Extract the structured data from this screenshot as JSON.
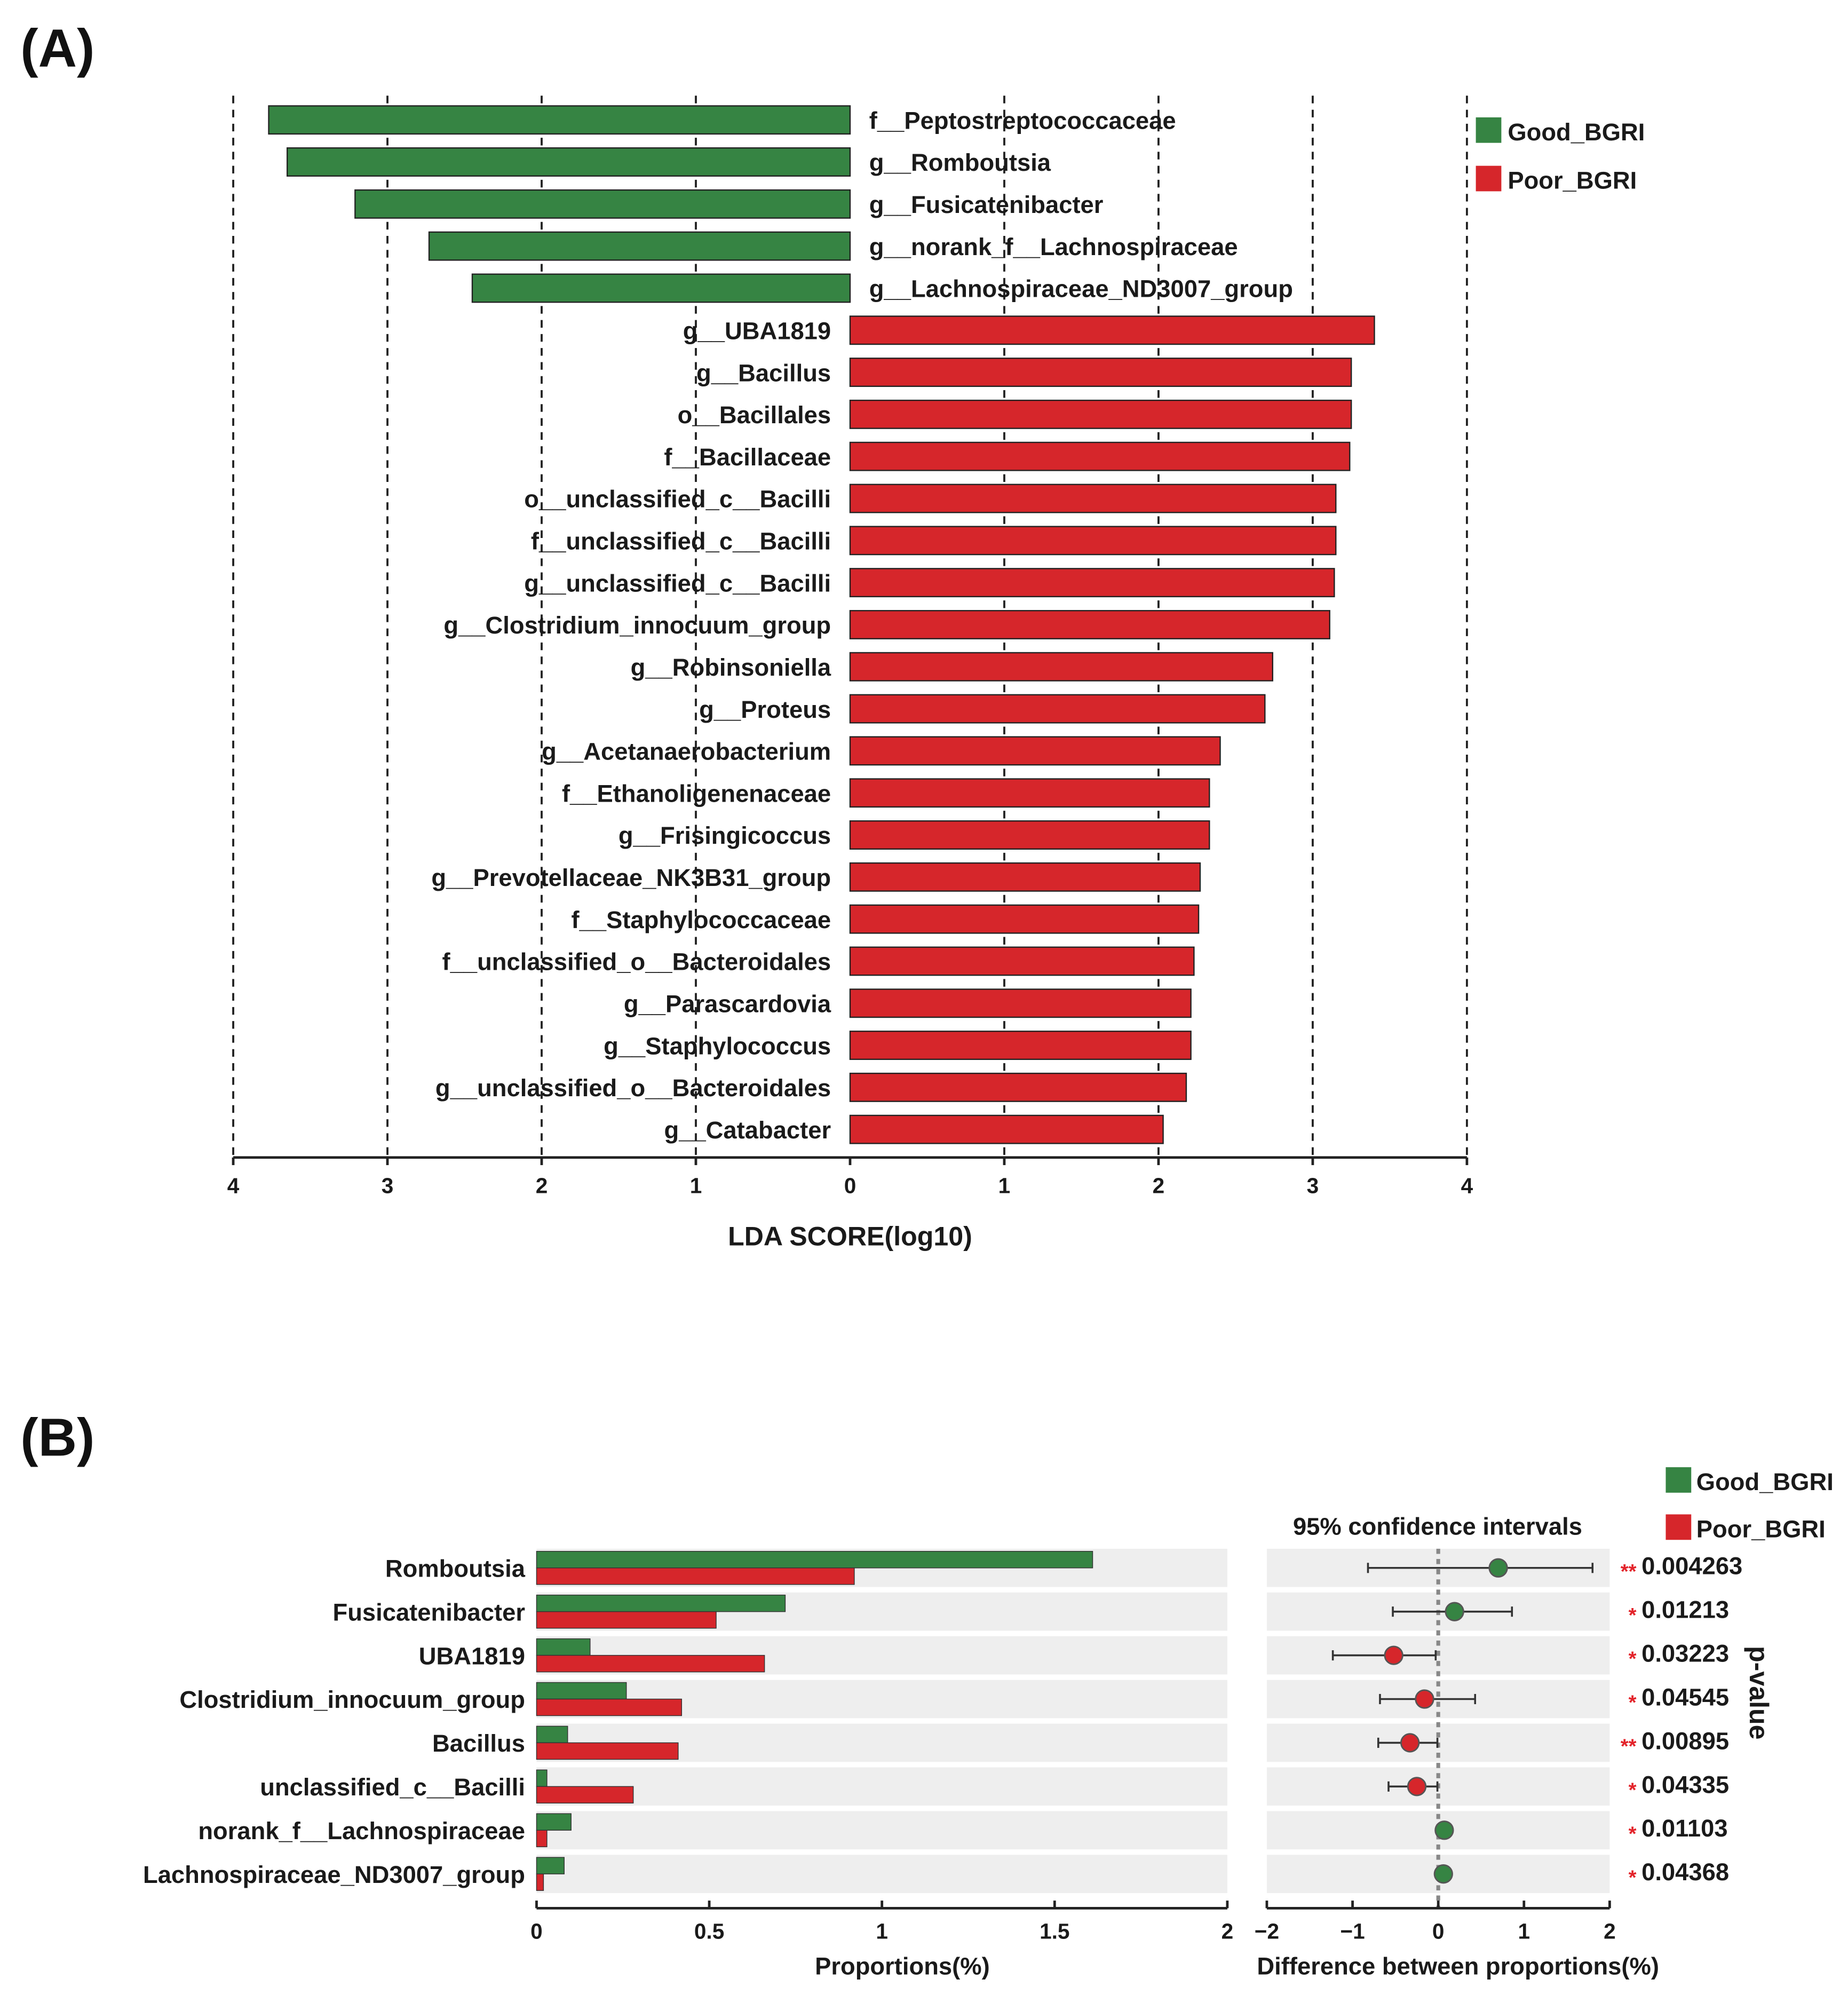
{
  "colors": {
    "good": "#368443",
    "poor": "#d6262b",
    "grid_bg": "#eeeeee",
    "star": "#e3232a"
  },
  "panel_a_label": "(A)",
  "panel_b_label": "(B)",
  "legend": {
    "good": "Good_BGRI",
    "poor": "Poor_BGRI"
  },
  "chart_data": [
    {
      "type": "bar",
      "orientation": "horizontal",
      "title": "",
      "xlabel": "LDA SCORE(log10)",
      "xlim": [
        -4,
        4
      ],
      "xticks": [
        "4",
        "3",
        "2",
        "1",
        "0",
        "1",
        "2",
        "3",
        "4"
      ],
      "grid": "dashed vertical",
      "legend_position": "top-right",
      "bars": [
        {
          "label": "f__Peptostreptococcaceae",
          "group": "good",
          "value": 3.77
        },
        {
          "label": "g__Romboutsia",
          "group": "good",
          "value": 3.65
        },
        {
          "label": "g__Fusicatenibacter",
          "group": "good",
          "value": 3.21
        },
        {
          "label": "g__norank_f__Lachnospiraceae",
          "group": "good",
          "value": 2.73
        },
        {
          "label": "g__Lachnospiraceae_ND3007_group",
          "group": "good",
          "value": 2.45
        },
        {
          "label": "g__UBA1819",
          "group": "poor",
          "value": 3.4
        },
        {
          "label": "g__Bacillus",
          "group": "poor",
          "value": 3.25
        },
        {
          "label": "o__Bacillales",
          "group": "poor",
          "value": 3.25
        },
        {
          "label": "f__Bacillaceae",
          "group": "poor",
          "value": 3.24
        },
        {
          "label": "o__unclassified_c__Bacilli",
          "group": "poor",
          "value": 3.15
        },
        {
          "label": "f__unclassified_c__Bacilli",
          "group": "poor",
          "value": 3.15
        },
        {
          "label": "g__unclassified_c__Bacilli",
          "group": "poor",
          "value": 3.14
        },
        {
          "label": "g__Clostridium_innocuum_group",
          "group": "poor",
          "value": 3.11
        },
        {
          "label": "g__Robinsoniella",
          "group": "poor",
          "value": 2.74
        },
        {
          "label": "g__Proteus",
          "group": "poor",
          "value": 2.69
        },
        {
          "label": "g__Acetanaerobacterium",
          "group": "poor",
          "value": 2.4
        },
        {
          "label": "f__Ethanoligenenaceae",
          "group": "poor",
          "value": 2.33
        },
        {
          "label": "g__Frisingicoccus",
          "group": "poor",
          "value": 2.33
        },
        {
          "label": "g__Prevotellaceae_NK3B31_group",
          "group": "poor",
          "value": 2.27
        },
        {
          "label": "f__Staphylococcaceae",
          "group": "poor",
          "value": 2.26
        },
        {
          "label": "f__unclassified_o__Bacteroidales",
          "group": "poor",
          "value": 2.23
        },
        {
          "label": "g__Parascardovia",
          "group": "poor",
          "value": 2.21
        },
        {
          "label": "g__Staphylococcus",
          "group": "poor",
          "value": 2.21
        },
        {
          "label": "g__unclassified_o__Bacteroidales",
          "group": "poor",
          "value": 2.18
        },
        {
          "label": "g__Catabacter",
          "group": "poor",
          "value": 2.03
        }
      ]
    },
    {
      "type": "bar",
      "orientation": "horizontal",
      "xlabel": "Proportions(%)",
      "xlim": [
        0,
        2
      ],
      "xticks": [
        "0",
        "0.5",
        "1",
        "1.5",
        "2"
      ],
      "categories": [
        "Romboutsia",
        "Fusicatenibacter",
        "UBA1819",
        "Clostridium_innocuum_group",
        "Bacillus",
        "unclassified_c__Bacilli",
        "norank_f__Lachnospiraceae",
        "Lachnospiraceae_ND3007_group"
      ],
      "series": [
        {
          "name": "Good_BGRI",
          "values": [
            1.61,
            0.72,
            0.155,
            0.26,
            0.09,
            0.03,
            0.1,
            0.08
          ]
        },
        {
          "name": "Poor_BGRI",
          "values": [
            0.92,
            0.52,
            0.66,
            0.42,
            0.41,
            0.28,
            0.03,
            0.02
          ]
        }
      ]
    },
    {
      "type": "scatter",
      "title": "95% confidence intervals",
      "xlabel": "Difference between proportions(%)",
      "ylabel": "p-value",
      "xlim": [
        -2,
        2
      ],
      "xticks": [
        "−2",
        "−1",
        "0",
        "1",
        "2"
      ],
      "points": [
        {
          "category": "Romboutsia",
          "diff": 0.7,
          "ci": [
            -0.82,
            1.8
          ],
          "group": "good",
          "stars": "**",
          "p": "0.004263"
        },
        {
          "category": "Fusicatenibacter",
          "diff": 0.19,
          "ci": [
            -0.53,
            0.86
          ],
          "group": "good",
          "stars": "*",
          "p": "0.01213"
        },
        {
          "category": "UBA1819",
          "diff": -0.52,
          "ci": [
            -1.23,
            -0.03
          ],
          "group": "poor",
          "stars": "*",
          "p": "0.03223"
        },
        {
          "category": "Clostridium_innocuum_group",
          "diff": -0.16,
          "ci": [
            -0.68,
            0.43
          ],
          "group": "poor",
          "stars": "*",
          "p": "0.04545"
        },
        {
          "category": "Bacillus",
          "diff": -0.33,
          "ci": [
            -0.7,
            -0.01
          ],
          "group": "poor",
          "stars": "**",
          "p": "0.00895"
        },
        {
          "category": "unclassified_c__Bacilli",
          "diff": -0.25,
          "ci": [
            -0.58,
            -0.01
          ],
          "group": "poor",
          "stars": "*",
          "p": "0.04335"
        },
        {
          "category": "norank_f__Lachnospiraceae",
          "diff": 0.07,
          "ci": [
            0.07,
            0.07
          ],
          "group": "good",
          "stars": "*",
          "p": "0.01103"
        },
        {
          "category": "Lachnospiraceae_ND3007_group",
          "diff": 0.06,
          "ci": [
            0.06,
            0.06
          ],
          "group": "good",
          "stars": "*",
          "p": "0.04368"
        }
      ]
    }
  ]
}
